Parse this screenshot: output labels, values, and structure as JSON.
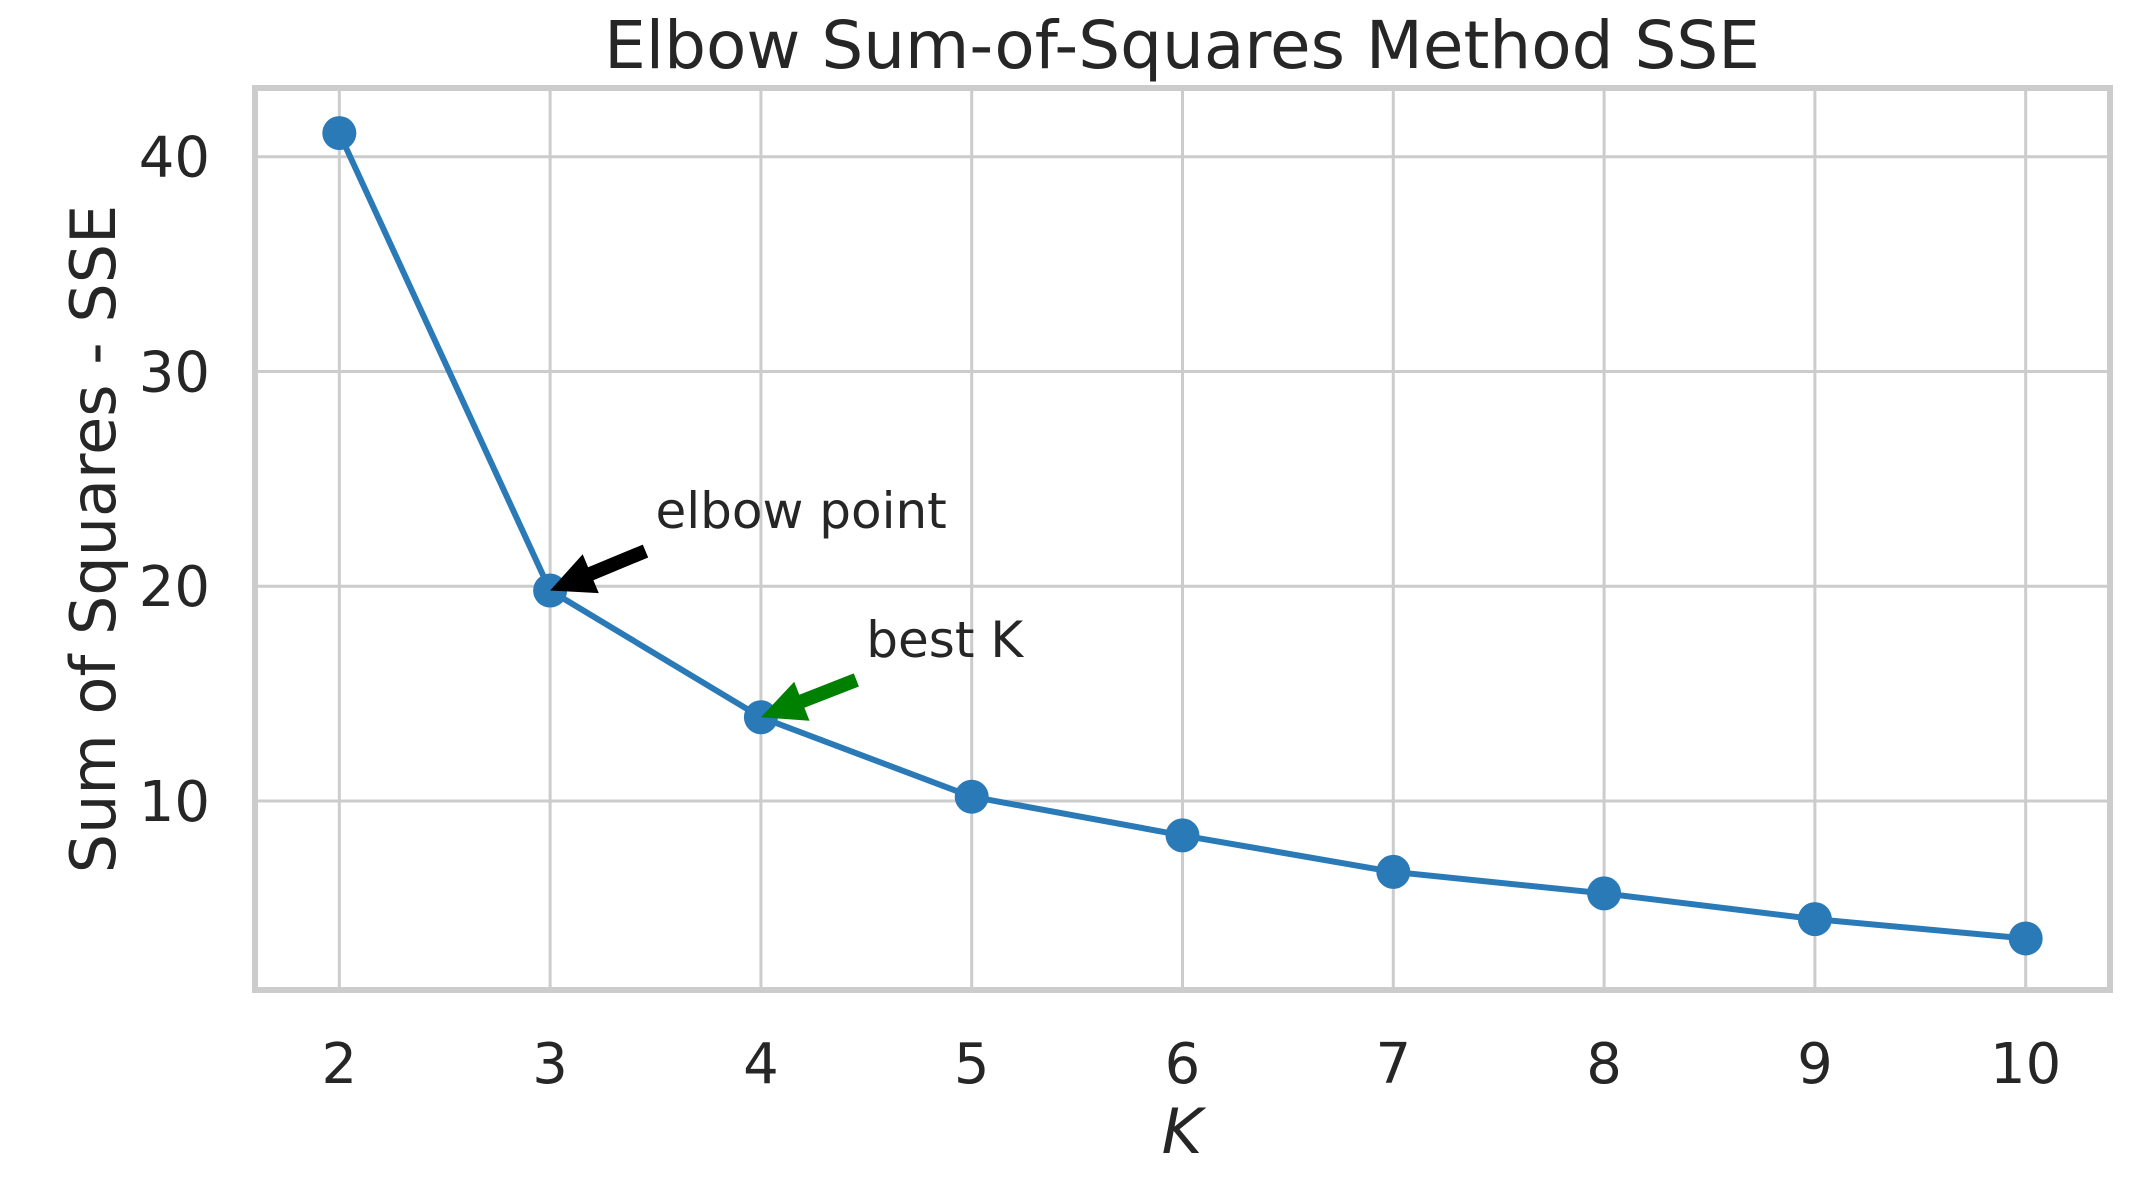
{
  "chart_data": {
    "type": "line",
    "title": "Elbow Sum-of-Squares Method SSE",
    "xlabel": "K",
    "ylabel": "Sum of Squares - SSE",
    "x": [
      2,
      3,
      4,
      5,
      6,
      7,
      8,
      9,
      10
    ],
    "series": [
      {
        "values": [
          41.1,
          19.8,
          13.9,
          10.2,
          8.4,
          6.7,
          5.7,
          4.5,
          3.6
        ],
        "color": "#2a7ab8"
      }
    ],
    "xlim": [
      1.6,
      10.4
    ],
    "ylim": [
      1.2,
      43.2
    ],
    "xticks": [
      2,
      3,
      4,
      5,
      6,
      7,
      8,
      9,
      10
    ],
    "yticks": [
      10,
      20,
      30,
      40
    ],
    "grid": true,
    "annotations": [
      {
        "text": "elbow point",
        "x": 3,
        "y": 19.8,
        "text_x": 3.5,
        "text_y": 23.5,
        "color": "#000000"
      },
      {
        "text": "best K",
        "x": 4,
        "y": 13.9,
        "text_x": 4.5,
        "text_y": 17.5,
        "color": "#008000"
      }
    ]
  }
}
